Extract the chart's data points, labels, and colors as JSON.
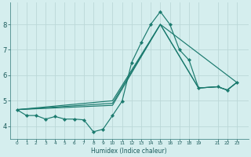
{
  "title": "",
  "xlabel": "Humidex (Indice chaleur)",
  "bg_color": "#d5eeee",
  "grid_color": "#bbd8d8",
  "line_color": "#1a7a6e",
  "xlim": [
    -0.7,
    24.2
  ],
  "ylim": [
    3.5,
    8.85
  ],
  "yticks": [
    4,
    5,
    6,
    7,
    8
  ],
  "xtick_positions": [
    0,
    1,
    2,
    3,
    4,
    5,
    6,
    7,
    8,
    9,
    10,
    11,
    12,
    13,
    14,
    15,
    16,
    17,
    18,
    19,
    21,
    22,
    23
  ],
  "xtick_labels": [
    "0",
    "1",
    "2",
    "3",
    "4",
    "5",
    "6",
    "7",
    "8",
    "9",
    "10",
    "11",
    "12",
    "13",
    "14",
    "15",
    "16",
    "17",
    "18",
    "19",
    "21",
    "22",
    "23"
  ],
  "main_line": {
    "x": [
      0,
      1,
      2,
      3,
      4,
      5,
      6,
      7,
      8,
      9,
      10,
      11,
      12,
      13,
      14,
      15,
      16,
      17,
      18,
      19,
      21,
      22,
      23
    ],
    "y": [
      4.65,
      4.42,
      4.42,
      4.28,
      4.38,
      4.28,
      4.28,
      4.25,
      3.78,
      3.88,
      4.42,
      4.98,
      6.5,
      7.28,
      8.0,
      8.5,
      8.0,
      7.0,
      6.6,
      5.5,
      5.55,
      5.42,
      5.72
    ]
  },
  "envelope_lines": [
    {
      "x": [
        0,
        10,
        15,
        19,
        21,
        22,
        23
      ],
      "y": [
        4.65,
        4.82,
        8.0,
        5.5,
        5.55,
        5.42,
        5.72
      ]
    },
    {
      "x": [
        0,
        10,
        15,
        19,
        21,
        22,
        23
      ],
      "y": [
        4.65,
        4.9,
        8.0,
        5.5,
        5.55,
        5.42,
        5.72
      ]
    },
    {
      "x": [
        0,
        10,
        15,
        23
      ],
      "y": [
        4.65,
        5.0,
        8.0,
        5.72
      ]
    }
  ]
}
